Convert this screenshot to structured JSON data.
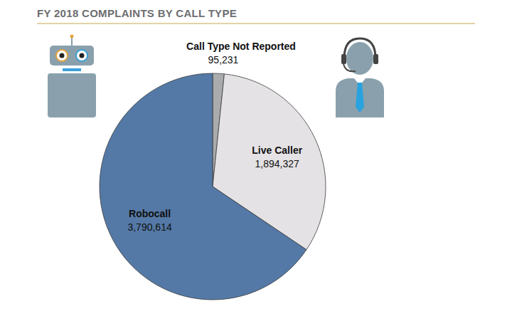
{
  "chart_data": {
    "type": "pie",
    "title": "FY 2018 COMPLAINTS BY CALL TYPE",
    "categories": [
      "Call Type Not Reported",
      "Live Caller",
      "Robocall"
    ],
    "values": [
      95231,
      1894327,
      3790614
    ],
    "value_labels": [
      "95,231",
      "1,894,327",
      "3,790,614"
    ],
    "colors": [
      "#a9abad",
      "#e4e2e4",
      "#5479a6"
    ],
    "data_labels": true
  }
}
